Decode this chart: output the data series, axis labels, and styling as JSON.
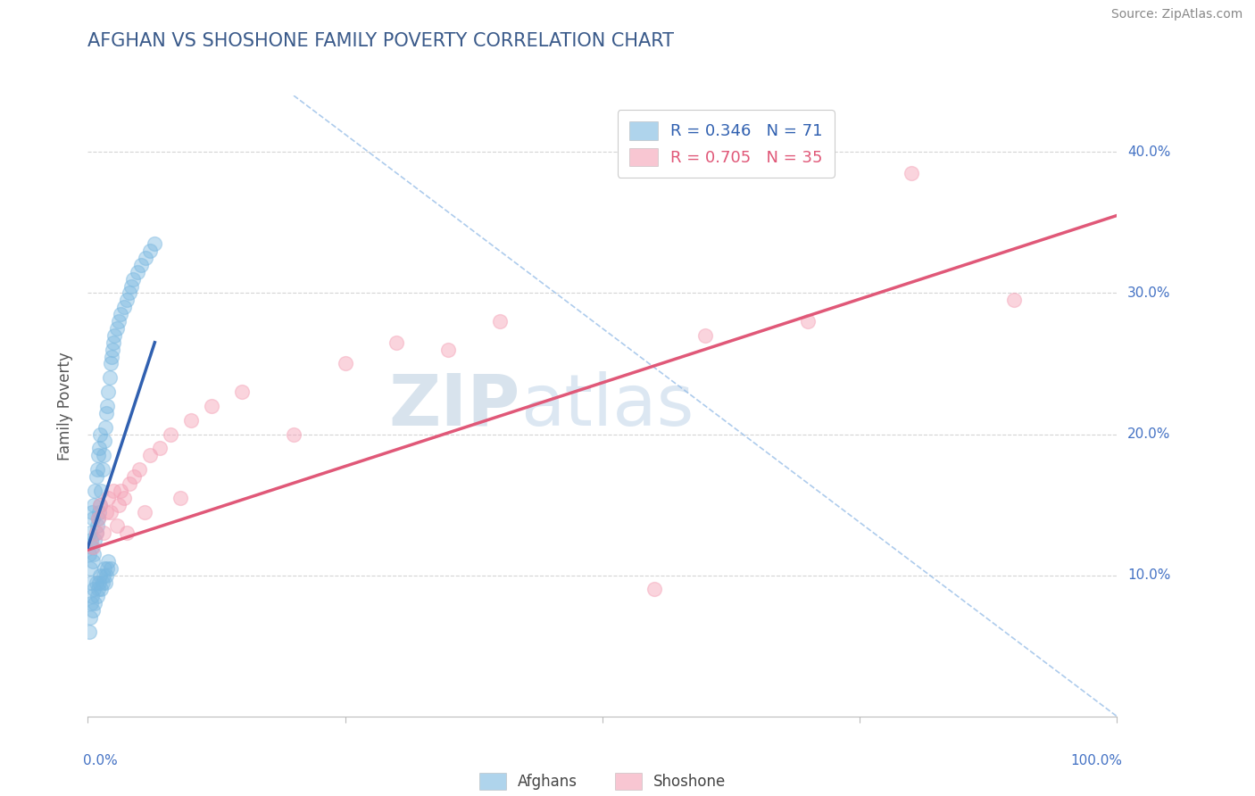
{
  "title": "AFGHAN VS SHOSHONE FAMILY POVERTY CORRELATION CHART",
  "source": "Source: ZipAtlas.com",
  "ylabel": "Family Poverty",
  "ytick_vals": [
    0.1,
    0.2,
    0.3,
    0.4
  ],
  "ytick_labels": [
    "10.0%",
    "20.0%",
    "30.0%",
    "40.0%"
  ],
  "xlim": [
    0.0,
    1.0
  ],
  "ylim": [
    0.0,
    0.44
  ],
  "legend_r1": "R = 0.346   N = 71",
  "legend_r2": "R = 0.705   N = 35",
  "legend_label1": "Afghans",
  "legend_label2": "Shoshone",
  "blue_color": "#7bb8e0",
  "pink_color": "#f4a0b5",
  "blue_line_color": "#3060b0",
  "pink_line_color": "#e05878",
  "diag_color": "#99bfe8",
  "watermark_zip": "ZIP",
  "watermark_atlas": "atlas",
  "watermark_color": "#c5d8f0",
  "title_color": "#3a5a8a",
  "source_color": "#888888",
  "grid_color": "#d0d0d0",
  "tick_color": "#4472c4",
  "afghan_x": [
    0.001,
    0.002,
    0.002,
    0.003,
    0.003,
    0.004,
    0.004,
    0.005,
    0.005,
    0.006,
    0.006,
    0.007,
    0.007,
    0.008,
    0.008,
    0.009,
    0.009,
    0.01,
    0.01,
    0.011,
    0.011,
    0.012,
    0.012,
    0.013,
    0.014,
    0.015,
    0.016,
    0.017,
    0.018,
    0.019,
    0.02,
    0.021,
    0.022,
    0.023,
    0.024,
    0.025,
    0.026,
    0.028,
    0.03,
    0.032,
    0.035,
    0.038,
    0.04,
    0.042,
    0.044,
    0.048,
    0.052,
    0.056,
    0.06,
    0.065,
    0.001,
    0.002,
    0.003,
    0.004,
    0.005,
    0.006,
    0.007,
    0.008,
    0.009,
    0.01,
    0.011,
    0.012,
    0.013,
    0.014,
    0.015,
    0.016,
    0.017,
    0.018,
    0.019,
    0.02,
    0.022
  ],
  "afghan_y": [
    0.115,
    0.105,
    0.13,
    0.095,
    0.125,
    0.12,
    0.145,
    0.11,
    0.14,
    0.115,
    0.15,
    0.125,
    0.16,
    0.13,
    0.17,
    0.135,
    0.175,
    0.14,
    0.185,
    0.145,
    0.19,
    0.15,
    0.2,
    0.16,
    0.175,
    0.185,
    0.195,
    0.205,
    0.215,
    0.22,
    0.23,
    0.24,
    0.25,
    0.255,
    0.26,
    0.265,
    0.27,
    0.275,
    0.28,
    0.285,
    0.29,
    0.295,
    0.3,
    0.305,
    0.31,
    0.315,
    0.32,
    0.325,
    0.33,
    0.335,
    0.06,
    0.07,
    0.08,
    0.085,
    0.075,
    0.09,
    0.08,
    0.095,
    0.085,
    0.09,
    0.095,
    0.1,
    0.09,
    0.095,
    0.1,
    0.105,
    0.095,
    0.1,
    0.105,
    0.11,
    0.105
  ],
  "shoshone_x": [
    0.005,
    0.008,
    0.01,
    0.012,
    0.015,
    0.018,
    0.02,
    0.022,
    0.025,
    0.028,
    0.03,
    0.032,
    0.035,
    0.038,
    0.04,
    0.045,
    0.05,
    0.055,
    0.06,
    0.07,
    0.08,
    0.09,
    0.1,
    0.12,
    0.15,
    0.2,
    0.25,
    0.3,
    0.35,
    0.4,
    0.55,
    0.6,
    0.7,
    0.8,
    0.9
  ],
  "shoshone_y": [
    0.12,
    0.13,
    0.14,
    0.15,
    0.13,
    0.145,
    0.155,
    0.145,
    0.16,
    0.135,
    0.15,
    0.16,
    0.155,
    0.13,
    0.165,
    0.17,
    0.175,
    0.145,
    0.185,
    0.19,
    0.2,
    0.155,
    0.21,
    0.22,
    0.23,
    0.2,
    0.25,
    0.265,
    0.26,
    0.28,
    0.09,
    0.27,
    0.28,
    0.385,
    0.295
  ],
  "afghan_line_x": [
    0.0,
    0.065
  ],
  "afghan_line_y": [
    0.12,
    0.265
  ],
  "shoshone_line_x": [
    0.0,
    1.0
  ],
  "shoshone_line_y": [
    0.118,
    0.355
  ],
  "diag_line_x": [
    0.2,
    1.0
  ],
  "diag_line_y": [
    0.44,
    0.0
  ]
}
